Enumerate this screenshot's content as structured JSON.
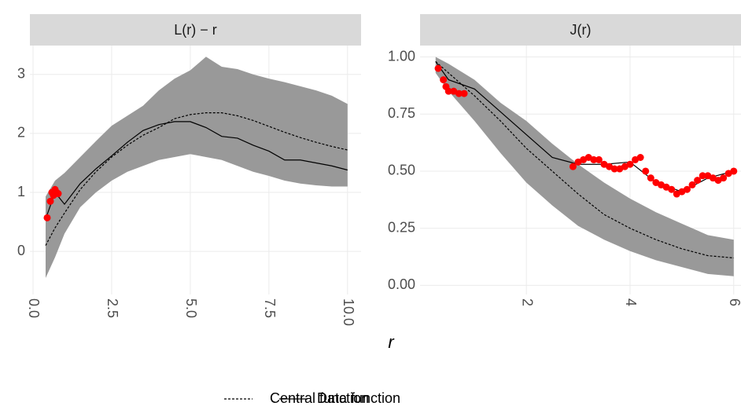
{
  "chart_data": [
    {
      "type": "line",
      "title": "L(r) − r",
      "xlim": [
        -0.1,
        10.43
      ],
      "ylim": [
        -0.73,
        3.49
      ],
      "xticks": [
        {
          "value": 0,
          "label": "0.0"
        },
        2.5,
        {
          "value": 5,
          "label": "5.0"
        },
        7.5,
        {
          "value": 10,
          "label": "10.0"
        }
      ],
      "yticks": [
        0,
        1,
        2,
        3
      ],
      "x": [
        0.4,
        0.7,
        1.0,
        1.5,
        2.0,
        2.5,
        3.0,
        3.5,
        4.0,
        4.5,
        5.0,
        5.5,
        6.0,
        6.5,
        7.0,
        7.5,
        8.0,
        8.5,
        9.0,
        9.5,
        10.0
      ],
      "envelope_upper": [
        0.93,
        1.2,
        1.33,
        1.6,
        1.87,
        2.13,
        2.3,
        2.47,
        2.73,
        2.93,
        3.07,
        3.3,
        3.13,
        3.09,
        3.0,
        2.93,
        2.87,
        2.8,
        2.73,
        2.64,
        2.5
      ],
      "envelope_lower": [
        -0.45,
        -0.1,
        0.3,
        0.75,
        1.0,
        1.2,
        1.35,
        1.45,
        1.55,
        1.6,
        1.65,
        1.6,
        1.55,
        1.45,
        1.35,
        1.28,
        1.2,
        1.15,
        1.12,
        1.1,
        1.1
      ],
      "central": [
        0.1,
        0.4,
        0.65,
        1.05,
        1.35,
        1.6,
        1.8,
        1.97,
        2.1,
        2.25,
        2.32,
        2.35,
        2.35,
        2.3,
        2.22,
        2.12,
        2.02,
        1.93,
        1.85,
        1.78,
        1.72
      ],
      "data": [
        0.55,
        1.0,
        0.8,
        1.15,
        1.4,
        1.62,
        1.85,
        2.05,
        2.15,
        2.2,
        2.2,
        2.1,
        1.95,
        1.92,
        1.8,
        1.7,
        1.55,
        1.55,
        1.5,
        1.45,
        1.38
      ],
      "outside_x": [
        0.45,
        0.55,
        0.6,
        0.65,
        0.7,
        0.75,
        0.8
      ],
      "outside_values": [
        0.57,
        0.85,
        1.0,
        0.95,
        1.05,
        1.0,
        0.98
      ],
      "envelope_color": "#999999",
      "outside_color": "#ff0000",
      "grid": true
    },
    {
      "type": "line",
      "title": "J(r)",
      "xlim": [
        -0.05,
        6.14
      ],
      "ylim": [
        -0.04,
        1.05
      ],
      "xticks": [
        2,
        4,
        6
      ],
      "yticks": [
        {
          "value": 0,
          "label": "0.00"
        },
        {
          "value": 0.25,
          "label": "0.25"
        },
        {
          "value": 0.5,
          "label": "0.50"
        },
        {
          "value": 0.75,
          "label": "0.75"
        },
        {
          "value": 1,
          "label": "1.00"
        }
      ],
      "x": [
        0.25,
        0.5,
        1.0,
        1.5,
        2.0,
        2.5,
        3.0,
        3.5,
        4.0,
        4.5,
        5.0,
        5.5,
        6.0
      ],
      "envelope_upper": [
        1.0,
        0.97,
        0.9,
        0.8,
        0.72,
        0.62,
        0.53,
        0.45,
        0.38,
        0.32,
        0.27,
        0.22,
        0.2
      ],
      "envelope_lower": [
        0.93,
        0.85,
        0.72,
        0.58,
        0.45,
        0.35,
        0.26,
        0.2,
        0.15,
        0.11,
        0.08,
        0.05,
        0.04
      ],
      "central": [
        0.98,
        0.93,
        0.83,
        0.72,
        0.6,
        0.5,
        0.4,
        0.31,
        0.25,
        0.2,
        0.16,
        0.13,
        0.12
      ],
      "data": [
        0.98,
        0.9,
        0.86,
        0.76,
        0.66,
        0.56,
        0.53,
        0.53,
        0.54,
        0.45,
        0.41,
        0.47,
        0.5
      ],
      "outside_x": [
        0.3,
        0.4,
        0.45,
        0.5,
        0.6,
        0.7,
        0.8,
        2.9,
        3.0,
        3.1,
        3.2,
        3.3,
        3.4,
        3.5,
        3.6,
        3.7,
        3.8,
        3.9,
        4.0,
        4.1,
        4.2,
        4.3,
        4.4,
        4.5,
        4.6,
        4.7,
        4.8,
        4.9,
        5.0,
        5.1,
        5.2,
        5.3,
        5.4,
        5.5,
        5.6,
        5.7,
        5.8,
        5.9,
        6.0
      ],
      "outside_values": [
        0.95,
        0.9,
        0.87,
        0.85,
        0.85,
        0.84,
        0.84,
        0.52,
        0.54,
        0.55,
        0.56,
        0.55,
        0.55,
        0.53,
        0.52,
        0.51,
        0.51,
        0.52,
        0.53,
        0.55,
        0.56,
        0.5,
        0.47,
        0.45,
        0.44,
        0.43,
        0.42,
        0.4,
        0.41,
        0.42,
        0.44,
        0.46,
        0.48,
        0.48,
        0.47,
        0.46,
        0.47,
        0.49,
        0.5
      ],
      "envelope_color": "#999999",
      "outside_color": "#ff0000",
      "grid": true
    }
  ],
  "x_label": "r",
  "legend": [
    {
      "name": "Central function",
      "linetype": "dashed"
    },
    {
      "name": "Data function",
      "linetype": "solid"
    }
  ]
}
